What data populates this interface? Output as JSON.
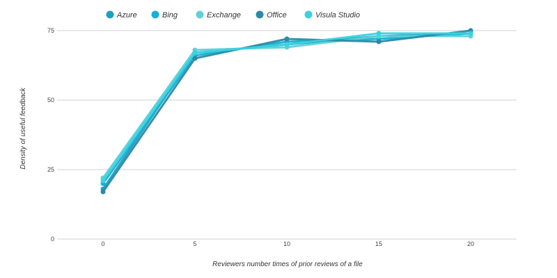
{
  "chart_data": {
    "type": "line",
    "xlabel": "Reviewers number times of prior reviews of a file",
    "ylabel": "Density of useful feedback",
    "x": [
      0,
      5,
      10,
      15,
      20
    ],
    "x_ticks": [
      "0",
      "5",
      "10",
      "15",
      "20"
    ],
    "y_ticks": [
      "0",
      "25",
      "50",
      "75"
    ],
    "xlim": [
      -2.5,
      22.5
    ],
    "ylim": [
      0,
      75
    ],
    "grid": true,
    "legend_position": "top",
    "series": [
      {
        "name": "Azure",
        "color": "#1f9fbf",
        "values": [
          18,
          67,
          70,
          73,
          74
        ]
      },
      {
        "name": "Bing",
        "color": "#14b0d6",
        "values": [
          20,
          66,
          71,
          72,
          74
        ]
      },
      {
        "name": "Exchange",
        "color": "#5fd0d6",
        "values": [
          22,
          68,
          69,
          73,
          73
        ]
      },
      {
        "name": "Office",
        "color": "#2a8aa8",
        "values": [
          17,
          65,
          72,
          71,
          75
        ]
      },
      {
        "name": "Visula Studio",
        "color": "#3ad2de",
        "values": [
          21,
          67,
          70,
          74,
          74
        ]
      }
    ]
  }
}
